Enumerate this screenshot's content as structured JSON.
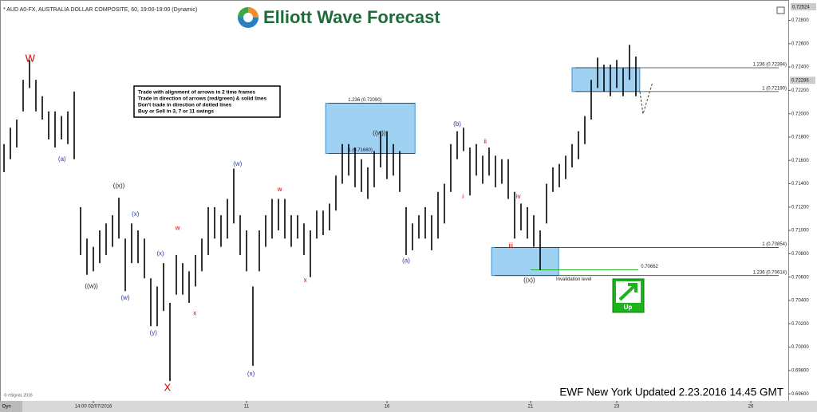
{
  "header": {
    "symbol": "* AUD A0-FX, AUSTRALIA DOLLAR COMPOSITE, 60, 19:00-19:00 (Dynamic)",
    "logo": "Elliott Wave Forecast",
    "price": "0.72524",
    "footer": "EWF New York Updated 2.23.2016 14.45 GMT",
    "copyright": "© eSignal, 2016",
    "mode": "Dyn"
  },
  "info_box": [
    "Trade with alignment of arrows in 2 time frames",
    "Trade in direction of arrows (red/green) & solid lines",
    "Don't trade in direction of dotted lines",
    "Buy or Sell in 3, 7 or 11 swings"
  ],
  "signal": "Up",
  "chart_data": {
    "type": "range_bar",
    "color": "#000000",
    "high": [
      0.7174,
      0.7188,
      0.7195,
      0.7229,
      0.7246,
      0.7229,
      0.7215,
      0.7202,
      0.7202,
      0.7198,
      0.7202,
      0.7219,
      0.712,
      0.7093,
      0.7086,
      0.71,
      0.7106,
      0.7113,
      0.7128,
      0.7093,
      0.7106,
      0.71,
      0.7093,
      0.7059,
      0.7052,
      0.7072,
      0.7038,
      0.7079,
      0.7072,
      0.7065,
      0.7079,
      0.7093,
      0.712,
      0.712,
      0.7113,
      0.7127,
      0.7153,
      0.7113,
      0.71,
      0.7052,
      0.71,
      0.7113,
      0.7127,
      0.7127,
      0.7127,
      0.7113,
      0.7113,
      0.7106,
      0.71,
      0.7117,
      0.7117,
      0.7123,
      0.7147,
      0.7174,
      0.7174,
      0.7171,
      0.7161,
      0.7154,
      0.7168,
      0.7185,
      0.7185,
      0.7174,
      0.7168,
      0.712,
      0.7106,
      0.7113,
      0.712,
      0.7113,
      0.7133,
      0.714,
      0.7174,
      0.7185,
      0.7188,
      0.7171,
      0.7174,
      0.7164,
      0.7171,
      0.7164,
      0.7161,
      0.7161,
      0.7133,
      0.7123,
      0.712,
      0.7113,
      0.71,
      0.714,
      0.7154,
      0.7157,
      0.7164,
      0.7174,
      0.7185,
      0.7198,
      0.7229,
      0.7248,
      0.7242,
      0.7242,
      0.7246,
      0.7239,
      0.7259,
      0.7249
    ],
    "low": [
      0.715,
      0.7161,
      0.7171,
      0.7202,
      0.7222,
      0.7202,
      0.7195,
      0.7178,
      0.7171,
      0.7178,
      0.7174,
      0.7161,
      0.7079,
      0.7062,
      0.7065,
      0.7072,
      0.7079,
      0.7086,
      0.7093,
      0.7048,
      0.7072,
      0.7072,
      0.7059,
      0.7018,
      0.7018,
      0.7031,
      0.6971,
      0.7045,
      0.7045,
      0.7038,
      0.7052,
      0.7065,
      0.7079,
      0.7093,
      0.7086,
      0.7093,
      0.7106,
      0.7079,
      0.7065,
      0.6984,
      0.7065,
      0.7086,
      0.7093,
      0.71,
      0.7093,
      0.7086,
      0.7093,
      0.7079,
      0.706,
      0.7093,
      0.7096,
      0.71,
      0.7117,
      0.714,
      0.7147,
      0.7137,
      0.7133,
      0.7127,
      0.7137,
      0.7154,
      0.7144,
      0.7147,
      0.7133,
      0.7079,
      0.7083,
      0.7093,
      0.7093,
      0.7083,
      0.7093,
      0.7106,
      0.7133,
      0.7161,
      0.7168,
      0.713,
      0.7147,
      0.714,
      0.7147,
      0.7137,
      0.714,
      0.7127,
      0.7093,
      0.71,
      0.7093,
      0.7086,
      0.7066,
      0.7106,
      0.7133,
      0.7137,
      0.7144,
      0.7154,
      0.7161,
      0.7174,
      0.7195,
      0.7222,
      0.7219,
      0.7215,
      0.7222,
      0.7215,
      0.7229,
      0.7215
    ],
    "xlim": [
      -0.625,
      122.875
    ],
    "xticks": [
      {
        "value": 14,
        "label": "14:00 02/07/2016"
      },
      {
        "value": 38,
        "label": "11"
      },
      {
        "value": 60,
        "label": "16"
      },
      {
        "value": 82.5,
        "label": "21"
      },
      {
        "value": 96,
        "label": "23"
      },
      {
        "value": 117,
        "label": "26"
      }
    ],
    "ylim": [
      0.6954,
      0.7294
    ],
    "yticks": [
      {
        "value": 0.728,
        "label": "0.72800"
      },
      {
        "value": 0.726,
        "label": "0.72600"
      },
      {
        "value": 0.724,
        "label": "0.72400"
      },
      {
        "value": 0.722,
        "label": "0.72200"
      },
      {
        "value": 0.72,
        "label": "0.72000"
      },
      {
        "value": 0.718,
        "label": "0.71800"
      },
      {
        "value": 0.716,
        "label": "0.71600"
      },
      {
        "value": 0.714,
        "label": "0.71400"
      },
      {
        "value": 0.712,
        "label": "0.71200"
      },
      {
        "value": 0.71,
        "label": "0.71000"
      },
      {
        "value": 0.708,
        "label": "0.70800"
      },
      {
        "value": 0.706,
        "label": "0.70600"
      },
      {
        "value": 0.704,
        "label": "0.70400"
      },
      {
        "value": 0.702,
        "label": "0.70200"
      },
      {
        "value": 0.7,
        "label": "0.70000"
      },
      {
        "value": 0.698,
        "label": "0.69800"
      },
      {
        "value": 0.696,
        "label": "0.69600"
      }
    ],
    "current_price": {
      "value": 0.72286,
      "label": "0.72286"
    },
    "zones": [
      {
        "x0": 50.4,
        "x1": 64.4,
        "top": 0.7209,
        "bottom": 0.7166,
        "top_label": "1.236 (0.72090)",
        "bottom_label": "1 (0.71660)",
        "extend": false
      },
      {
        "x0": 89.0,
        "x1": 99.6,
        "top": 0.72394,
        "bottom": 0.7219,
        "top_label": "1.236 (0.72394)",
        "bottom_label": "1 (0.72190)",
        "extend": true
      },
      {
        "x0": 76.4,
        "x1": 86.9,
        "top": 0.70854,
        "bottom": 0.70614,
        "top_label": "1 (0.70854)",
        "bottom_label": "1.236 (0.70614)",
        "extend": true
      }
    ],
    "invalidation": {
      "value": 0.70662,
      "label": "0.70662",
      "x0": 82.5,
      "x1": 99.4,
      "text": "Invalidation level"
    },
    "annotations": [
      {
        "text": "W",
        "color": "#d40000",
        "x": 4.1,
        "y": 0.7247
      },
      {
        "text": "(a)",
        "color": "#2b3aa8",
        "x": 9.1,
        "y": 0.7161
      },
      {
        "text": "((w))",
        "color": "#222222",
        "x": 13.7,
        "y": 0.7052
      },
      {
        "text": "((x))",
        "color": "#222222",
        "x": 18.0,
        "y": 0.7138
      },
      {
        "text": "(x)",
        "color": "#2b3aa8",
        "x": 20.6,
        "y": 0.7114
      },
      {
        "text": "(w)",
        "color": "#2b3aa8",
        "x": 19.0,
        "y": 0.7042
      },
      {
        "text": "(x)",
        "color": "#2b3aa8",
        "x": 24.5,
        "y": 0.708
      },
      {
        "text": "w",
        "color": "#d40000",
        "x": 27.2,
        "y": 0.7102
      },
      {
        "text": "(y)",
        "color": "#2b3aa8",
        "x": 23.4,
        "y": 0.7012
      },
      {
        "text": "x",
        "color": "#d40000",
        "x": 29.9,
        "y": 0.7029
      },
      {
        "text": "X",
        "color": "#d40000",
        "x": 25.6,
        "y": 0.6965
      },
      {
        "text": "(w)",
        "color": "#2b3aa8",
        "x": 36.6,
        "y": 0.7157
      },
      {
        "text": "(x)",
        "color": "#2b3aa8",
        "x": 38.7,
        "y": 0.6977
      },
      {
        "text": "w",
        "color": "#d40000",
        "x": 43.2,
        "y": 0.7135
      },
      {
        "text": "x",
        "color": "#d40000",
        "x": 47.2,
        "y": 0.7057
      },
      {
        "text": "((w))",
        "color": "#222222",
        "x": 58.8,
        "y": 0.7183
      },
      {
        "text": "(a)",
        "color": "#2b3aa8",
        "x": 63.0,
        "y": 0.7074
      },
      {
        "text": "(b)",
        "color": "#2b3aa8",
        "x": 71.0,
        "y": 0.7191
      },
      {
        "text": "ii",
        "color": "#d40000",
        "x": 75.4,
        "y": 0.7176
      },
      {
        "text": "i",
        "color": "#d40000",
        "x": 71.9,
        "y": 0.7129
      },
      {
        "text": "iv",
        "color": "#d40000",
        "x": 80.6,
        "y": 0.7129
      },
      {
        "text": "iii",
        "color": "#d40000",
        "x": 79.4,
        "y": 0.7087
      },
      {
        "text": "((x))",
        "color": "#222222",
        "x": 82.3,
        "y": 0.7057
      }
    ]
  }
}
